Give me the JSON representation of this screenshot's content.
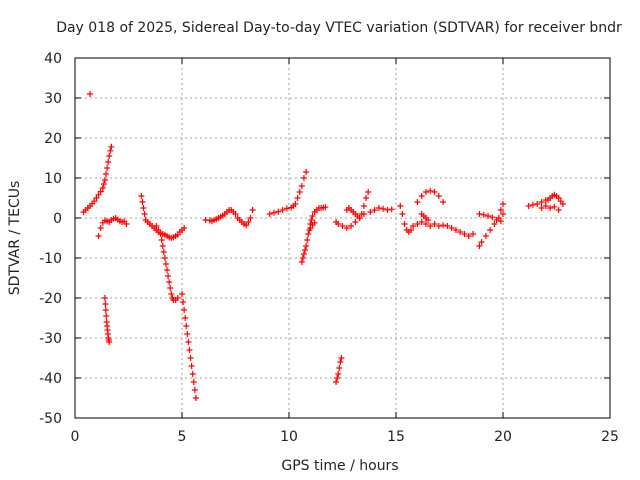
{
  "chart_data": {
    "type": "scatter",
    "title": "Day 018 of 2025, Sidereal Day-to-day VTEC variation (SDTVAR) for receiver bndr",
    "xlabel": "GPS time / hours",
    "ylabel": "SDTVAR / TECUs",
    "xlim": [
      0,
      25
    ],
    "ylim": [
      -50,
      40
    ],
    "xticks": [
      0,
      5,
      10,
      15,
      20,
      25
    ],
    "yticks": [
      40,
      30,
      20,
      10,
      0,
      -10,
      -20,
      -30,
      -40,
      -50
    ],
    "grid": true,
    "marker": "+",
    "color": "#ff0000",
    "series": [
      {
        "name": "s1",
        "x": [
          0.4,
          0.5,
          0.6,
          0.7,
          0.8,
          0.9,
          1.0,
          1.1,
          1.2,
          1.3,
          1.35,
          1.4,
          1.45,
          1.5,
          1.55,
          1.6,
          1.65,
          1.7
        ],
        "y": [
          1.5,
          2,
          2.5,
          3,
          3.6,
          4.2,
          5,
          5.8,
          6.6,
          7.5,
          8.5,
          9.5,
          11,
          12.5,
          14,
          15.5,
          16.8,
          17.8
        ]
      },
      {
        "name": "s2",
        "x": [
          0.7
        ],
        "y": [
          31
        ]
      },
      {
        "name": "s3",
        "x": [
          1.1,
          1.2,
          1.3,
          1.4,
          1.5,
          1.6,
          1.7,
          1.8,
          1.9,
          2.0,
          2.1,
          2.2,
          2.3,
          2.4
        ],
        "y": [
          -4.5,
          -2.5,
          -1.2,
          -0.6,
          -0.8,
          -1,
          -0.5,
          -0.2,
          0,
          -0.4,
          -0.8,
          -1,
          -0.8,
          -1.5
        ]
      },
      {
        "name": "s4",
        "x": [
          1.4,
          1.42,
          1.44,
          1.46,
          1.48,
          1.5,
          1.52,
          1.54,
          1.56,
          1.58,
          1.6
        ],
        "y": [
          -20,
          -21.5,
          -23,
          -24.5,
          -26,
          -27,
          -28,
          -29,
          -30,
          -30.5,
          -31
        ]
      },
      {
        "name": "s5",
        "x": [
          3.1,
          3.15,
          3.2,
          3.25,
          3.3,
          3.4,
          3.5,
          3.6,
          3.7,
          3.8,
          3.9,
          4.0,
          4.1,
          4.2,
          4.3,
          4.4,
          4.5,
          4.6,
          4.7,
          4.8,
          4.9,
          5.0,
          5.1
        ],
        "y": [
          5.5,
          4,
          2.5,
          1,
          -0.5,
          -1,
          -1.5,
          -2,
          -2.5,
          -3,
          -3.5,
          -3.8,
          -4,
          -4.2,
          -4.5,
          -4.8,
          -5,
          -4.8,
          -4.5,
          -4.2,
          -3.5,
          -3,
          -2.5
        ]
      },
      {
        "name": "s6",
        "x": [
          3.8,
          3.9,
          4.0,
          4.05,
          4.1,
          4.15,
          4.2,
          4.25,
          4.3,
          4.35,
          4.4,
          4.45,
          4.5,
          4.55,
          4.6,
          4.7,
          4.8
        ],
        "y": [
          -2,
          -3,
          -4,
          -5.5,
          -7,
          -8.5,
          -10,
          -11.5,
          -13,
          -14.5,
          -16,
          -17.5,
          -19,
          -20,
          -20.5,
          -20.5,
          -20
        ]
      },
      {
        "name": "s7",
        "x": [
          5.0,
          5.05,
          5.1,
          5.15,
          5.2,
          5.25,
          5.3,
          5.35,
          5.4,
          5.45,
          5.5,
          5.55,
          5.6,
          5.65
        ],
        "y": [
          -19,
          -21,
          -23,
          -25,
          -27,
          -29,
          -31,
          -33,
          -35,
          -37,
          -39,
          -41,
          -43,
          -45
        ]
      },
      {
        "name": "s8",
        "x": [
          6.1,
          6.3,
          6.4,
          6.5,
          6.6,
          6.7,
          6.8,
          6.9,
          7.0,
          7.1,
          7.2,
          7.3,
          7.4,
          7.5,
          7.6,
          7.7,
          7.8,
          7.9,
          8.0,
          8.1,
          8.2,
          8.3
        ],
        "y": [
          -0.5,
          -0.6,
          -0.8,
          -0.5,
          -0.3,
          0,
          0.3,
          0.6,
          1,
          1.5,
          2,
          2,
          1.5,
          1,
          0,
          -0.5,
          -1,
          -1.5,
          -1.8,
          -1,
          0,
          2
        ]
      },
      {
        "name": "s9",
        "x": [
          9.1,
          9.3,
          9.5,
          9.7,
          9.9,
          10.1,
          10.2,
          10.3,
          10.4,
          10.5,
          10.6,
          10.7,
          10.8
        ],
        "y": [
          1,
          1.3,
          1.6,
          2,
          2.4,
          2.6,
          3,
          3.5,
          5,
          6.5,
          8,
          10,
          11.5
        ]
      },
      {
        "name": "s10",
        "x": [
          10.6,
          10.65,
          10.7,
          10.75,
          10.8,
          10.85,
          10.9,
          10.95,
          11.0,
          11.05,
          11.1,
          11.2,
          11.3,
          11.4,
          11.5,
          11.6,
          11.7
        ],
        "y": [
          -11,
          -10,
          -9,
          -8,
          -7,
          -5.5,
          -4,
          -3,
          -1.5,
          -0.5,
          0.5,
          1.5,
          2,
          2.5,
          2.5,
          2.6,
          2.7
        ]
      },
      {
        "name": "s11",
        "x": [
          11.0,
          11.1,
          11.2
        ],
        "y": [
          -2.5,
          -1.8,
          -1.2
        ]
      },
      {
        "name": "s12",
        "x": [
          12.2,
          12.25,
          12.3,
          12.35,
          12.4,
          12.45
        ],
        "y": [
          -41,
          -40,
          -39,
          -37.5,
          -36,
          -35
        ]
      },
      {
        "name": "s13",
        "x": [
          12.2,
          12.3,
          12.5,
          12.7,
          12.9,
          13.1,
          13.3,
          13.4,
          13.5,
          13.6,
          13.7
        ],
        "y": [
          -1,
          -1.5,
          -2,
          -2.5,
          -2,
          -1,
          0,
          1,
          3,
          5,
          6.5
        ]
      },
      {
        "name": "s14",
        "x": [
          12.7,
          12.8,
          12.9,
          13.0,
          13.1,
          13.2,
          13.3,
          13.5,
          13.8,
          14.0,
          14.2,
          14.4,
          14.6,
          14.8
        ],
        "y": [
          2,
          2.5,
          2,
          1.5,
          1,
          0.5,
          0,
          1,
          1.5,
          2,
          2.5,
          2.3,
          2,
          2.2
        ]
      },
      {
        "name": "s15",
        "x": [
          15.2,
          15.3,
          15.4,
          15.5,
          15.6,
          15.7,
          15.8,
          16.0,
          16.2,
          16.4,
          16.6,
          16.8,
          17.0,
          17.2,
          17.4,
          17.6,
          17.8,
          18.0,
          18.2,
          18.4,
          18.6
        ],
        "y": [
          3,
          1,
          -1.5,
          -3,
          -3.5,
          -3,
          -2,
          -1.5,
          -1,
          -1.5,
          -2,
          -1.5,
          -2,
          -1.8,
          -2,
          -2.5,
          -3,
          -3.5,
          -4,
          -4.5,
          -4
        ]
      },
      {
        "name": "s16",
        "x": [
          16.0,
          16.2,
          16.4,
          16.6,
          16.8,
          17.0,
          17.2
        ],
        "y": [
          4,
          5.5,
          6.5,
          6.8,
          6.5,
          5.5,
          4
        ]
      },
      {
        "name": "s17",
        "x": [
          16.2,
          16.3,
          16.4,
          16.5
        ],
        "y": [
          1,
          0.5,
          0,
          -0.5
        ]
      },
      {
        "name": "s18",
        "x": [
          18.9,
          19.0,
          19.2,
          19.4,
          19.6,
          19.8,
          20.0
        ],
        "y": [
          -7,
          -6,
          -4.5,
          -3,
          -1.5,
          0,
          1
        ]
      },
      {
        "name": "s19",
        "x": [
          18.9,
          19.1,
          19.3,
          19.5,
          19.7,
          19.9
        ],
        "y": [
          1,
          0.8,
          0.5,
          0.2,
          -0.5,
          -0.8
        ]
      },
      {
        "name": "s20",
        "x": [
          19.9,
          20.0
        ],
        "y": [
          2,
          3.5
        ]
      },
      {
        "name": "s21",
        "x": [
          21.2,
          21.4,
          21.6,
          21.8,
          22.0,
          22.1,
          22.2,
          22.3,
          22.4,
          22.5,
          22.6,
          22.7,
          22.8
        ],
        "y": [
          3,
          3.3,
          3.5,
          4,
          4.5,
          4.5,
          5,
          5.5,
          5.8,
          5.5,
          5,
          4.2,
          3.5
        ]
      },
      {
        "name": "s22",
        "x": [
          21.8,
          22.0,
          22.2,
          22.4,
          22.6
        ],
        "y": [
          2.5,
          3,
          2.5,
          2.8,
          2
        ]
      }
    ]
  }
}
